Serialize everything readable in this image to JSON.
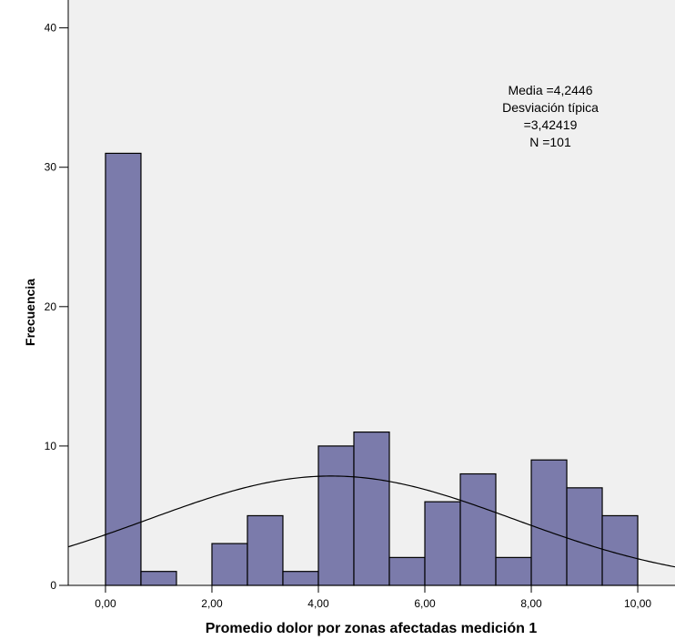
{
  "chart_data": {
    "type": "bar",
    "subtype": "histogram",
    "xlabel": "Promedio dolor por zonas afectadas medición 1",
    "ylabel": "Frecuencia",
    "x_tick_labels": [
      "0,00",
      "2,00",
      "4,00",
      "6,00",
      "8,00",
      "10,00"
    ],
    "y_tick_labels": [
      "0",
      "10",
      "20",
      "30",
      "40"
    ],
    "xlim": [
      -0.7,
      10.7
    ],
    "ylim": [
      0,
      42
    ],
    "bin_width": 0.6667,
    "bins": [
      {
        "start": 0.0,
        "end": 0.6667,
        "count": 31
      },
      {
        "start": 0.6667,
        "end": 1.3333,
        "count": 1
      },
      {
        "start": 1.3333,
        "end": 2.0,
        "count": 0
      },
      {
        "start": 2.0,
        "end": 2.6667,
        "count": 3
      },
      {
        "start": 2.6667,
        "end": 3.3333,
        "count": 5
      },
      {
        "start": 3.3333,
        "end": 4.0,
        "count": 1
      },
      {
        "start": 4.0,
        "end": 4.6667,
        "count": 10
      },
      {
        "start": 4.6667,
        "end": 5.3333,
        "count": 11
      },
      {
        "start": 5.3333,
        "end": 6.0,
        "count": 2
      },
      {
        "start": 6.0,
        "end": 6.6667,
        "count": 6
      },
      {
        "start": 6.6667,
        "end": 7.3333,
        "count": 8
      },
      {
        "start": 7.3333,
        "end": 8.0,
        "count": 2
      },
      {
        "start": 8.0,
        "end": 8.6667,
        "count": 9
      },
      {
        "start": 8.6667,
        "end": 9.3333,
        "count": 7
      },
      {
        "start": 9.3333,
        "end": 10.0,
        "count": 5
      }
    ],
    "normal_curve": {
      "mean": 4.2446,
      "sd": 3.42419,
      "n": 101
    },
    "stats": {
      "line1": "Media =4,2446",
      "line2": "Desviación típica",
      "line3": "=3,42419",
      "line4": "N =101"
    },
    "legend_position": "top-right",
    "grid": false,
    "colors": {
      "plot_background": "#f0f0f0",
      "bar_fill": "#7b7bab",
      "bar_stroke": "#000000",
      "curve": "#000000"
    }
  }
}
